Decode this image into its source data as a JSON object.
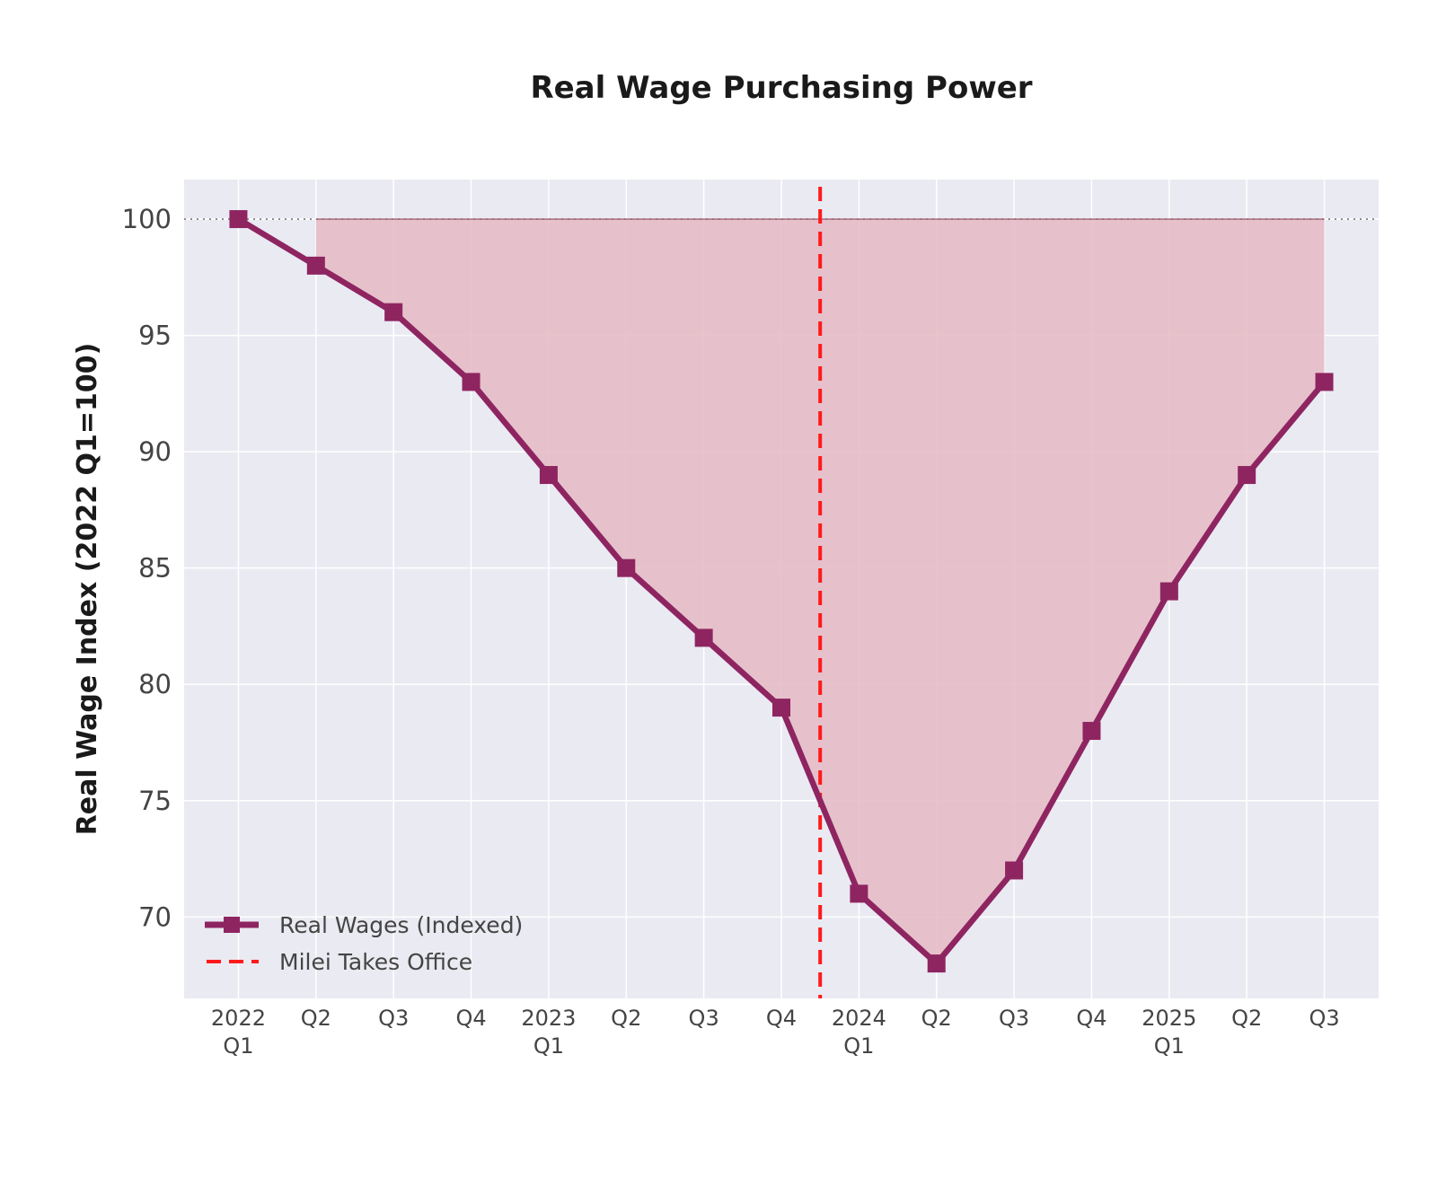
{
  "chart_data": {
    "type": "line",
    "title": "Real Wage Purchasing Power",
    "xlabel": "",
    "ylabel": "Real Wage Index (2022 Q1=100)",
    "categories": [
      [
        "2022",
        "Q1"
      ],
      [
        "Q2"
      ],
      [
        "Q3"
      ],
      [
        "Q4"
      ],
      [
        "2023",
        "Q1"
      ],
      [
        "Q2"
      ],
      [
        "Q3"
      ],
      [
        "Q4"
      ],
      [
        "2024",
        "Q1"
      ],
      [
        "Q2"
      ],
      [
        "Q3"
      ],
      [
        "Q4"
      ],
      [
        "2025",
        "Q1"
      ],
      [
        "Q2"
      ],
      [
        "Q3"
      ]
    ],
    "series": [
      {
        "name": "Real Wages (Indexed)",
        "values": [
          100,
          98,
          96,
          93,
          89,
          85,
          82,
          79,
          71,
          68,
          72,
          78,
          84,
          89,
          93
        ],
        "color": "#8e2561",
        "marker": "square"
      }
    ],
    "baseline": {
      "value": 100,
      "style": "dotted"
    },
    "shaded_gap": {
      "between": [
        "series",
        "baseline"
      ],
      "from_index": 1,
      "color": "#e5bcc6"
    },
    "vline": {
      "name": "Milei Takes Office",
      "position": 7.5,
      "color": "#ff1a1a",
      "style": "dashed"
    },
    "ylim": [
      66.5,
      101.7
    ],
    "yticks": [
      70,
      75,
      80,
      85,
      90,
      95,
      100
    ],
    "xlim": [
      -0.7,
      14.7
    ],
    "grid": true,
    "legend_position": "lower-left",
    "background": "#eaeaf2"
  }
}
